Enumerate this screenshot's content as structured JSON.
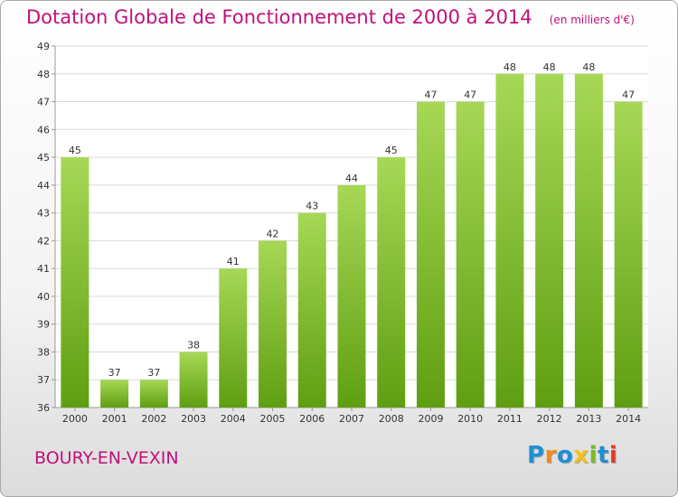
{
  "header": {
    "title": "Dotation Globale de Fonctionnement de 2000 à 2014",
    "unit": "(en milliers d'€)"
  },
  "footer": {
    "commune": "BOURY-EN-VEXIN"
  },
  "brand": {
    "name": "Proxiti",
    "letters": [
      "P",
      "r",
      "o",
      "x",
      "i",
      "t",
      "i"
    ],
    "letter_colors": [
      "#1f8fd6",
      "#f28a1a",
      "#1f8fd6",
      "#f2c21a",
      "#7dbb2a",
      "#1f8fd6",
      "#e53a2a"
    ]
  },
  "colors": {
    "accent": "#c0117a",
    "bar_top": "#a6d856",
    "bar_bottom": "#5f9e12",
    "grid": "#d9d9d9",
    "axis": "#999999",
    "text": "#333333"
  },
  "chart_data": {
    "type": "bar",
    "categories": [
      "2000",
      "2001",
      "2002",
      "2003",
      "2004",
      "2005",
      "2006",
      "2007",
      "2008",
      "2009",
      "2010",
      "2011",
      "2012",
      "2013",
      "2014"
    ],
    "values": [
      45,
      37,
      37,
      38,
      41,
      42,
      43,
      44,
      45,
      47,
      47,
      48,
      48,
      48,
      47
    ],
    "ylim": [
      36,
      49
    ],
    "yticks": [
      36,
      37,
      38,
      39,
      40,
      41,
      42,
      43,
      44,
      45,
      46,
      47,
      48,
      49
    ],
    "grid": true,
    "data_labels": true
  }
}
